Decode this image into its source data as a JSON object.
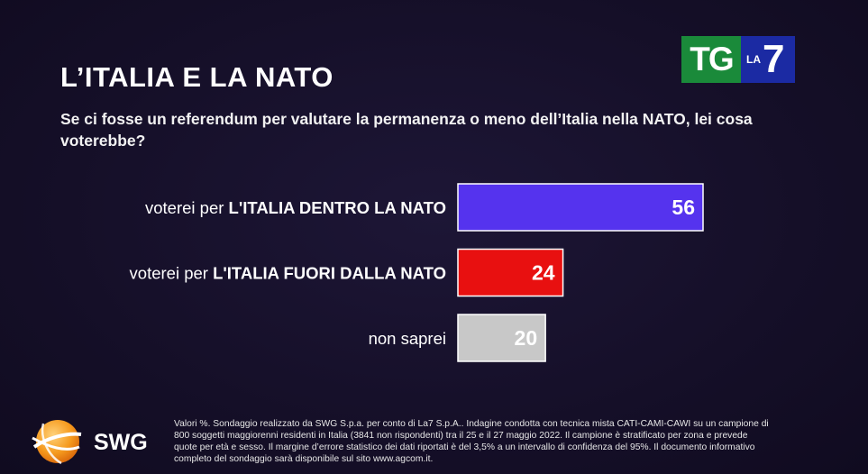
{
  "title": "L’ITALIA E LA NATO",
  "question": "Se ci fosse un referendum per valutare la permanenza o meno dell’Italia nella NATO, lei cosa voterebbe?",
  "logo": {
    "tg": "TG",
    "la": "LA",
    "seven": "7"
  },
  "colors": {
    "background": "#150f28",
    "bar_dentro": "#5533ee",
    "bar_fuori": "#e81010",
    "bar_non_saprei": "#c8c8c8"
  },
  "chart_data": {
    "type": "bar",
    "orientation": "horizontal",
    "categories": [
      {
        "prefix": "voterei per ",
        "bold": "L'ITALIA DENTRO LA NATO"
      },
      {
        "prefix": "voterei per ",
        "bold": "L'ITALIA FUORI DALLA NATO"
      },
      {
        "prefix": "non saprei",
        "bold": ""
      }
    ],
    "values": [
      56,
      24,
      20
    ],
    "colors": [
      "#5533ee",
      "#e81010",
      "#c8c8c8"
    ],
    "data_labels": [
      "56",
      "24",
      "20"
    ],
    "xlim": [
      0,
      100
    ],
    "grid": false,
    "legend": "none"
  },
  "swg": {
    "name": "SWG"
  },
  "footnote": "Valori %. Sondaggio realizzato da SWG S.p.a. per conto di La7 S.p.A.. Indagine condotta con tecnica mista CATI-CAMI-CAWI su un campione di 800 soggetti maggiorenni residenti in Italia (3841 non rispondenti) tra il 25 e il 27 maggio 2022. Il campione è stratificato per zona e prevede quote per età e sesso. Il margine d’errore statistico dei dati riportati è del 3,5% a un intervallo di confidenza del 95%. Il documento informativo completo del sondaggio sarà disponibile sul sito www.agcom.it."
}
